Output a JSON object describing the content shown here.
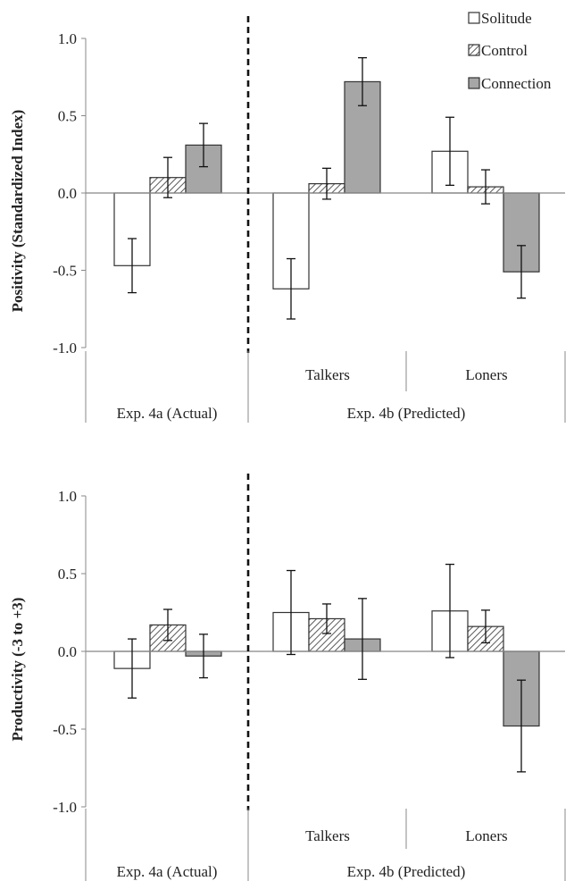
{
  "legend": [
    {
      "name": "Solitude",
      "fill": "#ffffff"
    },
    {
      "name": "Control",
      "fill": "hatch"
    },
    {
      "name": "Connection",
      "fill": "#a6a6a6"
    }
  ],
  "colors": {
    "solitude": "#ffffff",
    "control_hatch": "#5a5a5a",
    "connection": "#a6a6a6",
    "bar_stroke": "#333333",
    "axis": "#888888",
    "divider": "#111111"
  },
  "chart_data": [
    {
      "type": "bar",
      "ylabel": "Positivity (Standardized Index)",
      "ylim": [
        -1.0,
        1.0
      ],
      "yticks": [
        "1.0",
        "0.5",
        "0.0",
        "-0.5",
        "-1.0"
      ],
      "grid": false,
      "legend_position": "top-right",
      "groups": [
        {
          "label": "Exp. 4a (Actual)",
          "sublabel": "",
          "values": [
            -0.47,
            0.1,
            0.31
          ],
          "errors": [
            0.175,
            0.13,
            0.14
          ]
        },
        {
          "label": "Exp. 4b (Predicted)",
          "sublabel": "Talkers",
          "values": [
            -0.62,
            0.06,
            0.72
          ],
          "errors": [
            0.195,
            0.1,
            0.155
          ]
        },
        {
          "label": "Exp. 4b (Predicted)",
          "sublabel": "Loners",
          "values": [
            0.27,
            0.04,
            -0.51
          ],
          "errors": [
            0.22,
            0.11,
            0.17
          ]
        }
      ],
      "series": [
        "Solitude",
        "Control",
        "Connection"
      ]
    },
    {
      "type": "bar",
      "ylabel": "Productivity (-3 to +3)",
      "ylim": [
        -1.0,
        1.0
      ],
      "yticks": [
        "1.0",
        "0.5",
        "0.0",
        "-0.5",
        "-1.0"
      ],
      "grid": false,
      "legend_position": "",
      "groups": [
        {
          "label": "Exp. 4a (Actual)",
          "sublabel": "",
          "values": [
            -0.11,
            0.17,
            -0.03
          ],
          "errors": [
            0.19,
            0.1,
            0.14
          ]
        },
        {
          "label": "Exp. 4b (Predicted)",
          "sublabel": "Talkers",
          "values": [
            0.25,
            0.21,
            0.08
          ],
          "errors": [
            0.27,
            0.095,
            0.26
          ]
        },
        {
          "label": "Exp. 4b (Predicted)",
          "sublabel": "Loners",
          "values": [
            0.26,
            0.16,
            -0.48
          ],
          "errors": [
            0.3,
            0.105,
            0.295
          ]
        }
      ],
      "series": [
        "Solitude",
        "Control",
        "Connection"
      ]
    }
  ],
  "category_labels": {
    "exp4a": "Exp. 4a (Actual)",
    "exp4b": "Exp. 4b (Predicted)",
    "talkers": "Talkers",
    "loners": "Loners"
  }
}
